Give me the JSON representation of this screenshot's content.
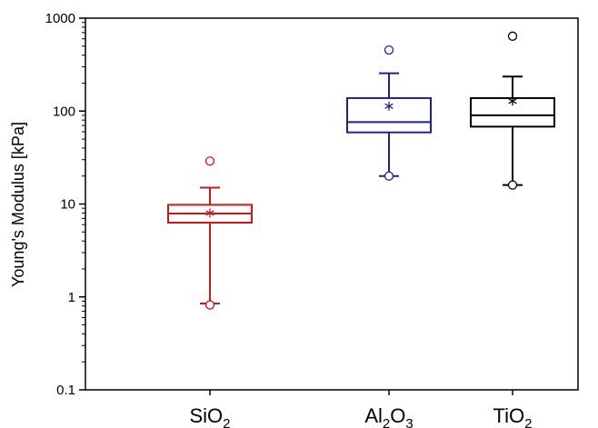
{
  "chart_data": {
    "type": "box",
    "ylabel": "Young's Modulus [kPa]",
    "yscale": "log",
    "ylim": [
      0.1,
      1000
    ],
    "yticks": [
      "0.1",
      "1",
      "10",
      "100",
      "1000"
    ],
    "categories": [
      {
        "base": "SiO",
        "parts": [
          [
            "Si",
            "O"
          ],
          [
            "2"
          ]
        ]
      },
      {
        "base": "Al2O3",
        "parts": []
      },
      {
        "base": "TiO2",
        "parts": []
      }
    ],
    "series": [
      {
        "label_main": [
          "SiO"
        ],
        "label_sub": [
          "2"
        ],
        "color": "#c8191f",
        "whisker_low": 0.85,
        "q1": 6.3,
        "median": 7.9,
        "q3": 9.8,
        "whisker_high": 15,
        "mean": 8.0,
        "outliers": [
          29,
          0.82
        ]
      },
      {
        "label_main": [
          "Al",
          "O"
        ],
        "label_sub": [
          "2",
          "3"
        ],
        "color": "#1f1f9e",
        "whisker_low": 20,
        "q1": 59,
        "median": 76,
        "q3": 138,
        "whisker_high": 255,
        "mean": 113,
        "outliers": [
          455,
          20
        ]
      },
      {
        "label_main": [
          "TiO"
        ],
        "label_sub": [
          "2"
        ],
        "color": "#000000",
        "whisker_low": 16,
        "q1": 68,
        "median": 90,
        "q3": 138,
        "whisker_high": 235,
        "mean": 128,
        "outliers": [
          640,
          16
        ]
      }
    ]
  }
}
